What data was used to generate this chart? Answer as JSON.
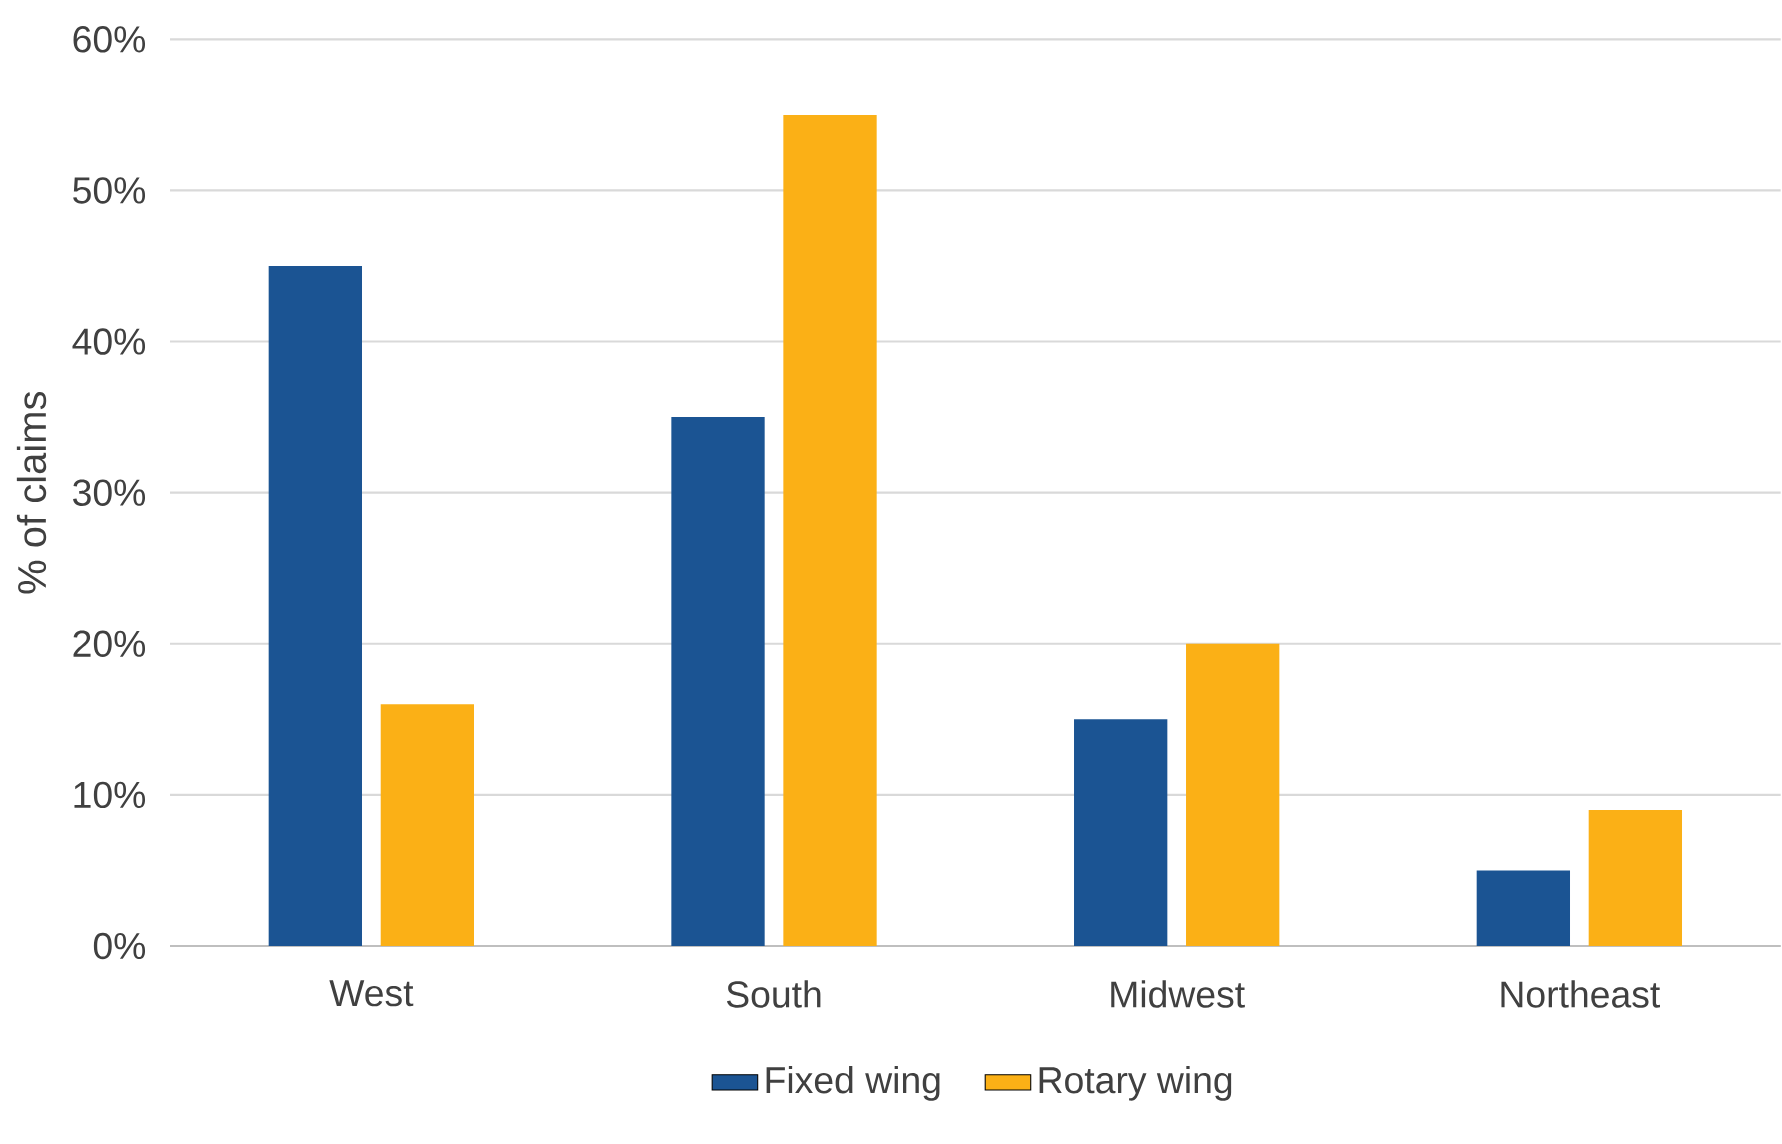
{
  "chart_data": {
    "type": "bar",
    "ylabel": "% of claims",
    "categories": [
      "West",
      "South",
      "Midwest",
      "Northeast"
    ],
    "series": [
      {
        "name": "Fixed wing",
        "color": "#1b5493",
        "values": [
          45,
          35,
          15,
          5
        ]
      },
      {
        "name": "Rotary wing",
        "color": "#fbb016",
        "values": [
          16,
          55,
          20,
          9
        ]
      }
    ],
    "ylim": [
      0,
      60
    ],
    "yticks": [
      {
        "value": 0,
        "label": "0%"
      },
      {
        "value": 10,
        "label": "10%"
      },
      {
        "value": 20,
        "label": "20%"
      },
      {
        "value": 30,
        "label": "30%"
      },
      {
        "value": 40,
        "label": "40%"
      },
      {
        "value": 50,
        "label": "50%"
      },
      {
        "value": 60,
        "label": "60%"
      }
    ],
    "grid": "y",
    "legend": "bottom"
  }
}
